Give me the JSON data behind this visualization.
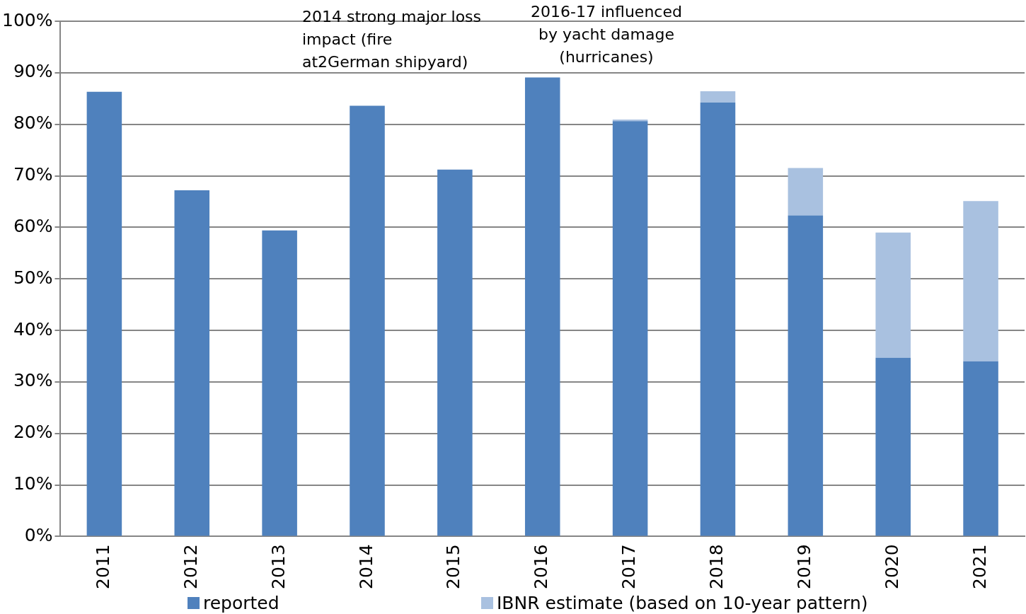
{
  "chart_data": {
    "type": "bar",
    "stacked": true,
    "categories": [
      "2011",
      "2012",
      "2013",
      "2014",
      "2015",
      "2016",
      "2017",
      "2018",
      "2019",
      "2020",
      "2021"
    ],
    "series": [
      {
        "name": "reported",
        "color": "#4f81bd",
        "values": [
          86.3,
          67.2,
          59.4,
          83.6,
          71.2,
          89.1,
          80.6,
          84.2,
          62.3,
          34.7,
          34.0
        ]
      },
      {
        "name": "IBNR estimate (based on 10-year pattern)",
        "color": "#a9c1e0",
        "values": [
          null,
          null,
          null,
          null,
          null,
          null,
          0.3,
          2.2,
          9.2,
          24.3,
          31.1
        ]
      }
    ],
    "ylim": [
      0,
      100
    ],
    "yticks": [
      {
        "value": 0,
        "label": "0%"
      },
      {
        "value": 10,
        "label": "10%"
      },
      {
        "value": 20,
        "label": "20%"
      },
      {
        "value": 30,
        "label": "30%"
      },
      {
        "value": 40,
        "label": "40%"
      },
      {
        "value": 50,
        "label": "50%"
      },
      {
        "value": 60,
        "label": "60%"
      },
      {
        "value": 70,
        "label": "70%"
      },
      {
        "value": 80,
        "label": "80%"
      },
      {
        "value": 90,
        "label": "90%"
      },
      {
        "value": 100,
        "label": "100%"
      }
    ],
    "grid": "y",
    "legend": "bottom",
    "annotations": [
      "2014 strong major loss\nimpact (fire\nat2German shipyard)",
      "2016-17 influenced\nby yacht damage\n(hurricanes)"
    ]
  }
}
